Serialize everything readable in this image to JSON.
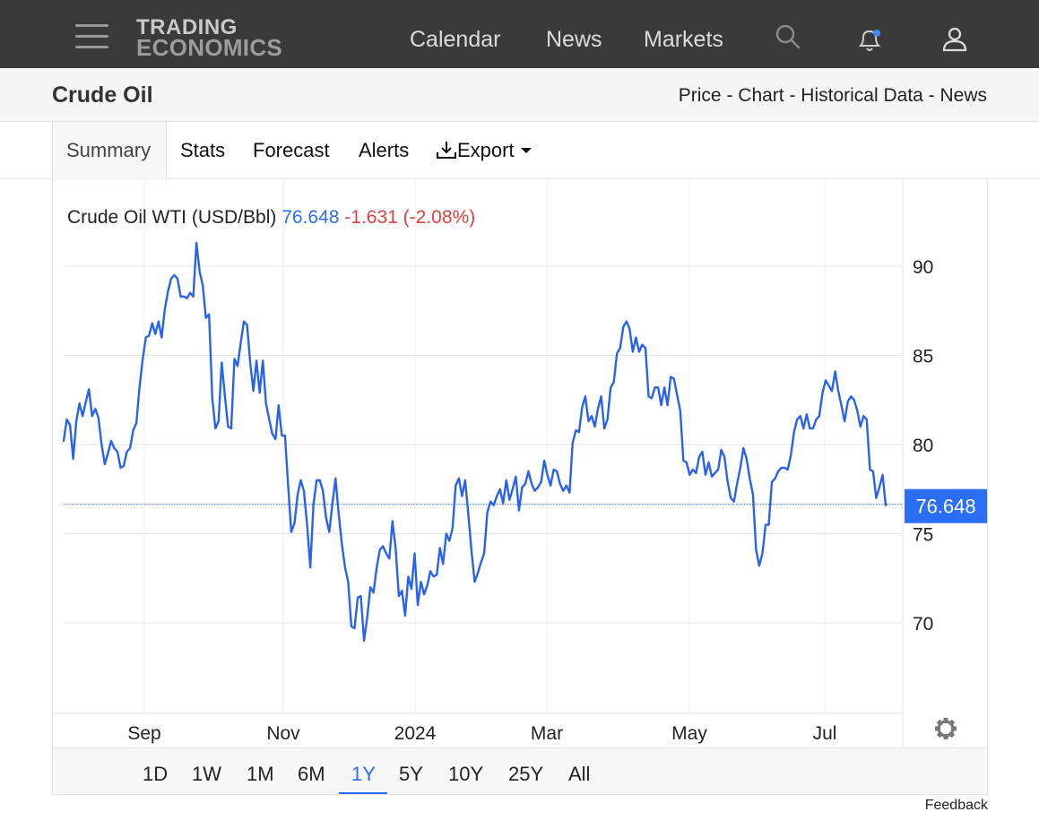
{
  "nav": {
    "logo_line1": "TRADING",
    "logo_line2": "ECONOMICS",
    "links": [
      "Calendar",
      "News",
      "Markets"
    ]
  },
  "header": {
    "title": "Crude Oil",
    "sub_links": "Price - Chart - Historical Data - News"
  },
  "tabs": [
    "Summary",
    "Stats",
    "Forecast",
    "Alerts",
    "Export"
  ],
  "legend": {
    "series": "Crude Oil WTI (USD/Bbl)",
    "value": "76.648",
    "change": "-1.631 (-2.08%)"
  },
  "current_label": "76.648",
  "ranges": [
    "1D",
    "1W",
    "1M",
    "6M",
    "1Y",
    "5Y",
    "10Y",
    "25Y",
    "All"
  ],
  "active_range": "1Y",
  "feedback": "Feedback",
  "colors": {
    "line": "#2a62f0",
    "accent": "#2a6ef5",
    "negative": "#e04040",
    "nav_bg": "#3a3a3a"
  },
  "chart_data": {
    "type": "line",
    "series_name": "Crude Oil WTI (USD/Bbl)",
    "x_tick_labels": [
      "Sep",
      "Nov",
      "2024",
      "Mar",
      "May",
      "Jul"
    ],
    "y_ticks": [
      70,
      75,
      80,
      85,
      90
    ],
    "ylim": [
      65,
      94
    ],
    "current_value": 76.648,
    "y": [
      80.2,
      81.4,
      81.1,
      79.2,
      81.3,
      82.3,
      81.6,
      82.4,
      83.1,
      81.6,
      82.0,
      81.5,
      80.0,
      78.9,
      79.5,
      80.2,
      79.8,
      79.6,
      78.7,
      78.8,
      79.6,
      79.8,
      80.8,
      81.2,
      83.2,
      84.8,
      86.0,
      86.1,
      86.8,
      86.2,
      86.9,
      86.0,
      87.6,
      88.6,
      89.3,
      89.5,
      89.3,
      88.3,
      88.3,
      88.2,
      88.5,
      88.3,
      91.3,
      89.7,
      88.9,
      87.1,
      87.3,
      82.6,
      80.9,
      81.3,
      84.6,
      82.7,
      81.0,
      80.9,
      84.8,
      84.4,
      85.7,
      86.9,
      86.7,
      84.6,
      83.0,
      84.7,
      82.9,
      84.7,
      82.3,
      81.4,
      80.6,
      80.3,
      82.2,
      80.5,
      80.5,
      77.7,
      75.1,
      75.6,
      77.2,
      78.0,
      77.4,
      75.5,
      73.1,
      76.6,
      78.0,
      78.0,
      77.4,
      75.9,
      75.1,
      76.7,
      78.1,
      76.1,
      74.4,
      73.1,
      72.3,
      69.8,
      69.7,
      71.4,
      71.5,
      69.0,
      70.3,
      72.0,
      71.7,
      73.1,
      74.1,
      74.3,
      73.9,
      73.6,
      75.7,
      74.2,
      71.5,
      71.8,
      70.4,
      72.6,
      71.9,
      73.9,
      71.0,
      72.3,
      71.6,
      72.1,
      72.9,
      72.6,
      72.7,
      74.2,
      73.3,
      75.0,
      74.6,
      75.3,
      77.7,
      78.1,
      77.1,
      78.0,
      76.1,
      74.0,
      72.3,
      72.8,
      73.4,
      73.9,
      76.2,
      76.8,
      76.6,
      77.1,
      77.5,
      76.7,
      78.0,
      76.9,
      77.5,
      78.2,
      76.3,
      77.6,
      77.8,
      78.5,
      77.8,
      77.4,
      77.6,
      77.9,
      79.1,
      78.3,
      77.7,
      78.6,
      78.5,
      77.8,
      77.4,
      77.7,
      77.3,
      80.1,
      80.8,
      80.7,
      82.1,
      82.7,
      81.3,
      81.6,
      81.0,
      82.0,
      82.7,
      80.9,
      81.4,
      83.2,
      83.5,
      85.1,
      85.4,
      86.6,
      86.9,
      86.5,
      85.2,
      86.0,
      85.2,
      85.6,
      85.4,
      82.7,
      82.6,
      83.2,
      83.2,
      82.2,
      83.2,
      82.2,
      83.8,
      83.7,
      82.8,
      81.9,
      79.1,
      79.0,
      78.3,
      78.6,
      78.4,
      79.3,
      79.6,
      78.3,
      79.0,
      78.2,
      78.4,
      78.6,
      79.7,
      79.3,
      77.9,
      77.0,
      76.8,
      77.8,
      78.7,
      79.8,
      79.2,
      78.1,
      77.2,
      74.1,
      73.2,
      73.9,
      75.5,
      75.5,
      77.9,
      78.1,
      78.5,
      78.7,
      78.7,
      78.6,
      79.4,
      80.7,
      81.4,
      81.6,
      80.9,
      81.7,
      80.9,
      80.9,
      81.4,
      81.6,
      82.9,
      83.6,
      83.3,
      83.0,
      84.1,
      83.0,
      82.2,
      81.3,
      82.4,
      82.7,
      82.5,
      81.9,
      81.0,
      81.6,
      81.4,
      78.6,
      78.5,
      77.0,
      77.6,
      78.3,
      76.6
    ]
  }
}
